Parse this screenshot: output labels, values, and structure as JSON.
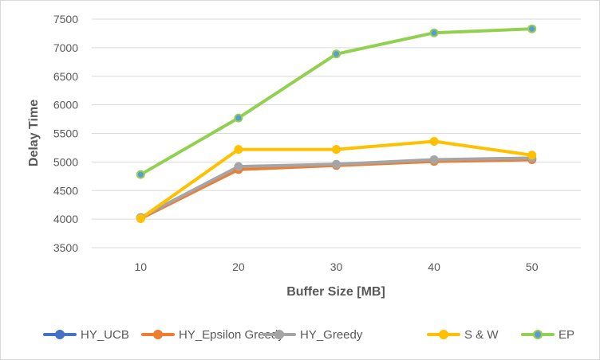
{
  "chart_data": {
    "type": "line",
    "title": "",
    "xlabel": "Buffer Size [MB]",
    "ylabel": "Delay Time",
    "x": [
      10,
      20,
      30,
      40,
      50
    ],
    "ylim": [
      3500,
      7500
    ],
    "yticks": [
      3500,
      4000,
      4500,
      5000,
      5500,
      6000,
      6500,
      7000,
      7500
    ],
    "grid": true,
    "legend_position": "bottom",
    "series": [
      {
        "name": "HY_UCB",
        "color": "#4472C4",
        "values": [
          4020,
          4870,
          4950,
          5020,
          5050
        ]
      },
      {
        "name": "HY_Epsilon Greedy",
        "color": "#ED7D31",
        "values": [
          4010,
          4870,
          4940,
          5010,
          5040
        ]
      },
      {
        "name": "HY_Greedy",
        "color": "#A5A5A5",
        "values": [
          4030,
          4920,
          4960,
          5040,
          5070
        ]
      },
      {
        "name": "S & W",
        "color": "#FFC000",
        "values": [
          4010,
          5220,
          5220,
          5360,
          5120
        ]
      },
      {
        "name": "EP",
        "color": "#92D050",
        "marker_color": "#5B9BD5",
        "values": [
          4780,
          5770,
          6890,
          7260,
          7330
        ]
      }
    ]
  }
}
